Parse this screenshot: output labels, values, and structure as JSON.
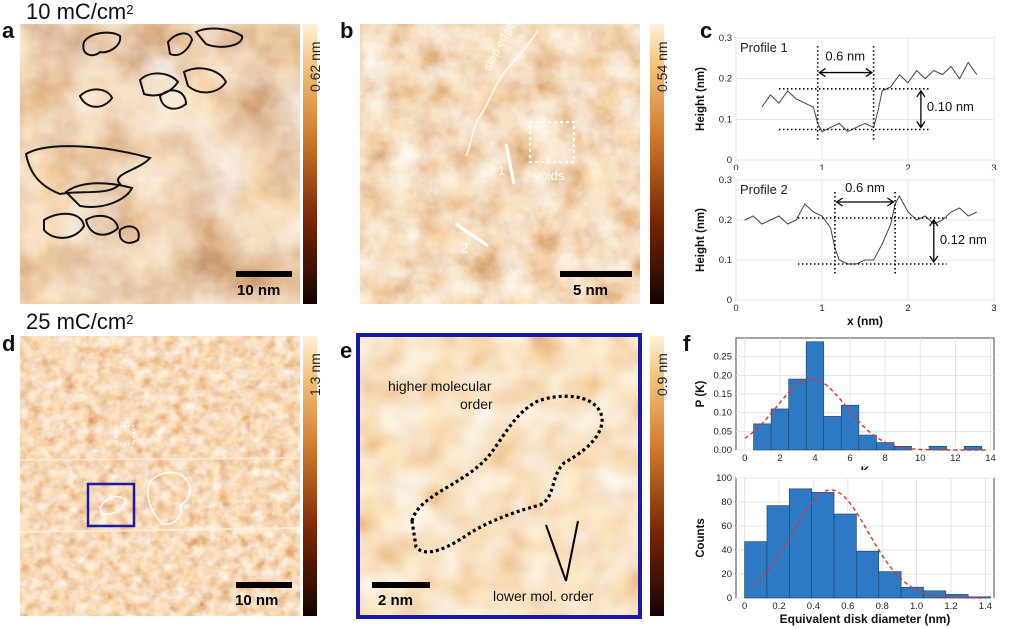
{
  "colors": {
    "afm_dark": "#3a0a00",
    "afm_mid": "#b5551a",
    "afm_light": "#f5c678",
    "box_blue": "#1a1aa8",
    "fit_red": "#e0302a",
    "bar_blue": "#2e79c4"
  },
  "header_top": {
    "text": "10 mC/cm",
    "sup": "2"
  },
  "header_bottom": {
    "text": "25 mC/cm",
    "sup": "2"
  },
  "panels": {
    "a": {
      "letter": "a",
      "colorbar_label": "0.62 nm",
      "scale_label": "10 nm"
    },
    "b": {
      "letter": "b",
      "colorbar_label": "0.54 nm",
      "scale_label": "5 nm",
      "step_edge_label": "step edge",
      "voids_label": "voids",
      "line1_label": "1",
      "line2_label": "2"
    },
    "c": {
      "letter": "c"
    },
    "d": {
      "letter": "d",
      "colorbar_label": "1.3 nm",
      "scale_label": "10 nm"
    },
    "e": {
      "letter": "e",
      "colorbar_label": "0.9 nm",
      "scale_label": "2 nm",
      "higher_label_line1": "higher molecular",
      "higher_label_line2": "order",
      "lower_label": "lower mol. order"
    },
    "f": {
      "letter": "f"
    }
  },
  "chart_data": [
    {
      "type": "line",
      "title": "Profile 1",
      "xlabel": "",
      "ylabel": "Height (nm)",
      "xlim": [
        0,
        3
      ],
      "ylim": [
        0,
        0.3
      ],
      "xticks": [
        "0",
        "1",
        "2",
        "3"
      ],
      "yticks": [
        "0",
        "0.1",
        "0.2",
        "0.3"
      ],
      "x": [
        0.3,
        0.4,
        0.5,
        0.6,
        0.7,
        0.8,
        0.9,
        0.95,
        1.0,
        1.1,
        1.2,
        1.3,
        1.4,
        1.5,
        1.6,
        1.65,
        1.7,
        1.8,
        1.9,
        2.0,
        2.1,
        2.2,
        2.3,
        2.4,
        2.5,
        2.6,
        2.7,
        2.8
      ],
      "y": [
        0.13,
        0.16,
        0.14,
        0.17,
        0.15,
        0.14,
        0.13,
        0.09,
        0.07,
        0.08,
        0.09,
        0.07,
        0.08,
        0.09,
        0.08,
        0.12,
        0.17,
        0.18,
        0.21,
        0.19,
        0.22,
        0.2,
        0.22,
        0.21,
        0.23,
        0.2,
        0.24,
        0.21
      ],
      "annotations": {
        "width_label": "0.6 nm",
        "height_label": "0.10 nm"
      }
    },
    {
      "type": "line",
      "title": "Profile 2",
      "xlabel": "x (nm)",
      "ylabel": "Height (nm)",
      "xlim": [
        0,
        3
      ],
      "ylim": [
        0,
        0.3
      ],
      "xticks": [
        "0",
        "1",
        "2",
        "3"
      ],
      "yticks": [
        "0",
        "0.1",
        "0.2",
        "0.3"
      ],
      "x": [
        0.1,
        0.2,
        0.3,
        0.4,
        0.5,
        0.6,
        0.7,
        0.8,
        0.9,
        1.0,
        1.1,
        1.15,
        1.2,
        1.3,
        1.4,
        1.5,
        1.6,
        1.7,
        1.8,
        1.85,
        1.9,
        2.0,
        2.1,
        2.2,
        2.3,
        2.4,
        2.5,
        2.6,
        2.7,
        2.8
      ],
      "y": [
        0.2,
        0.21,
        0.19,
        0.2,
        0.21,
        0.19,
        0.2,
        0.24,
        0.22,
        0.21,
        0.18,
        0.13,
        0.1,
        0.09,
        0.09,
        0.1,
        0.1,
        0.14,
        0.19,
        0.24,
        0.26,
        0.22,
        0.2,
        0.21,
        0.19,
        0.2,
        0.22,
        0.23,
        0.21,
        0.22
      ],
      "annotations": {
        "width_label": "0.6 nm",
        "height_label": "0.12 nm"
      }
    },
    {
      "type": "bar",
      "title": "",
      "xlabel": "K",
      "ylabel": "P (K)",
      "xlim": [
        -0.5,
        14.2
      ],
      "ylim": [
        0,
        0.3
      ],
      "xticks": [
        "0",
        "2",
        "4",
        "6",
        "8",
        "10",
        "12",
        "14"
      ],
      "yticks": [
        "0.00",
        "0.05",
        "0.10",
        "0.15",
        "0.20",
        "0.25"
      ],
      "categories": [
        1,
        2,
        3,
        4,
        5,
        6,
        7,
        8,
        9,
        10,
        11,
        12,
        13
      ],
      "values": [
        0.07,
        0.11,
        0.19,
        0.29,
        0.09,
        0.12,
        0.04,
        0.02,
        0.01,
        0.0,
        0.01,
        0.0,
        0.01
      ],
      "fit": {
        "type": "gaussian",
        "mean": 3.8,
        "peak": 0.19,
        "sigma": 2.0
      }
    },
    {
      "type": "bar",
      "title": "",
      "xlabel": "Equivalent disk diameter (nm)",
      "ylabel": "Counts",
      "xlim": [
        -0.05,
        1.45
      ],
      "ylim": [
        0,
        100
      ],
      "xticks": [
        "0",
        "0.2",
        "0.4",
        "0.6",
        "0.8",
        "1.0",
        "1.2",
        "1.4"
      ],
      "yticks": [
        "0",
        "20",
        "40",
        "60",
        "80",
        "100"
      ],
      "bin_edges": [
        0,
        0.13,
        0.26,
        0.39,
        0.52,
        0.65,
        0.78,
        0.91,
        1.04,
        1.17,
        1.3,
        1.43
      ],
      "values": [
        47,
        77,
        91,
        88,
        70,
        39,
        22,
        9,
        6,
        3,
        1
      ],
      "fit": {
        "type": "gaussian",
        "mean": 0.5,
        "peak": 90,
        "sigma": 0.22
      }
    }
  ]
}
